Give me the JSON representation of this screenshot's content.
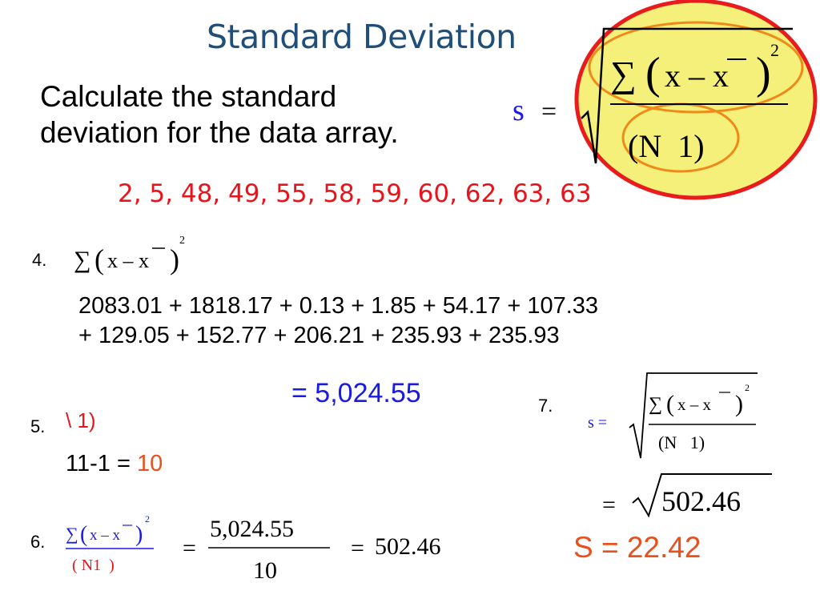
{
  "slide": {
    "title": "Standard Deviation",
    "intro_line1": "Calculate the standard",
    "intro_line2": "deviation for the data array.",
    "data_array": "2, 5, 48, 49, 55, 58, 59, 60, 62, 63, 63"
  },
  "main_formula": {
    "lhs": "s",
    "eq": "=",
    "sum": "∑",
    "numer": "x – x",
    "power": "2",
    "denom": "(N  1)"
  },
  "step4": {
    "label": "4.",
    "numer": "x – x",
    "power": "2",
    "sum_line1": "2083.01 + 1818.17 + 0.13 + 1.85 + 54.17 + 107.33",
    "sum_line2": "+ 129.05 + 152.77 + 206.21 + 235.93 + 235.93",
    "result": "= 5,024.55"
  },
  "step5": {
    "label": "5.",
    "expr": "\\   1)",
    "calc_prefix": "11-1 = ",
    "calc_result": "10"
  },
  "step6": {
    "label": "6.",
    "numer": "x – x",
    "power": "2",
    "denom": "( N1  )",
    "fraction_numer": "5,024.55",
    "fraction_denom": "10",
    "eq": "=",
    "result": "502.46"
  },
  "step7": {
    "label": "7.",
    "lhs": "s =",
    "numer": "x – x",
    "power": "2",
    "denom": "(N   1)",
    "eq": "=",
    "sqrt_value": "502.46"
  },
  "final": {
    "text": "S = 22.42"
  },
  "colors": {
    "title": "#1f4e79",
    "data_red": "#e8141c",
    "orange_red": "#e8501c",
    "blue": "#1a1ae6",
    "highlight_yellow": "#f5f07a",
    "circle_red": "#e81c1c",
    "circle_orange": "#ef8a1a"
  }
}
